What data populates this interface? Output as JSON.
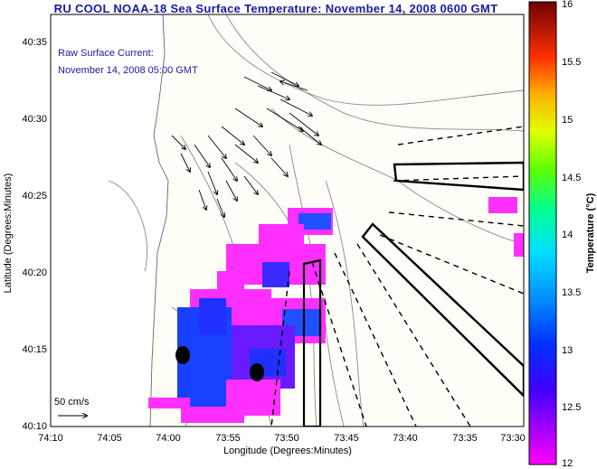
{
  "title": "RU COOL  NOAA-18  Sea Surface Temperature:  November 14, 2008 0600 GMT",
  "current_label": {
    "line1": "Raw Surface Current:",
    "line2": "November 14, 2008 05:00 GMT"
  },
  "scale_label": "50 cm/s",
  "x_axis": {
    "label": "Longitude (Degrees:Minutes)",
    "ticks": [
      "74:10",
      "74:05",
      "74:00",
      "73:55",
      "73:50",
      "73:45",
      "73:40",
      "73:35",
      "73:30"
    ]
  },
  "y_axis": {
    "label": "Latitude (Degrees:Minutes)",
    "ticks": [
      "40:35",
      "40:30",
      "40:25",
      "40:20",
      "40:15",
      "40:10"
    ]
  },
  "colorbar": {
    "label": "Temperature (°C)",
    "ticks": [
      "16",
      "15.5",
      "15",
      "14.5",
      "14",
      "13.5",
      "13",
      "12.5",
      "12"
    ],
    "range": [
      12,
      16
    ],
    "colors": [
      "#ff00ff",
      "#8000ff",
      "#0000ff",
      "#0080ff",
      "#00ffff",
      "#00ff80",
      "#80ff00",
      "#ffff00",
      "#ff8000",
      "#ff0000",
      "#800000"
    ]
  }
}
